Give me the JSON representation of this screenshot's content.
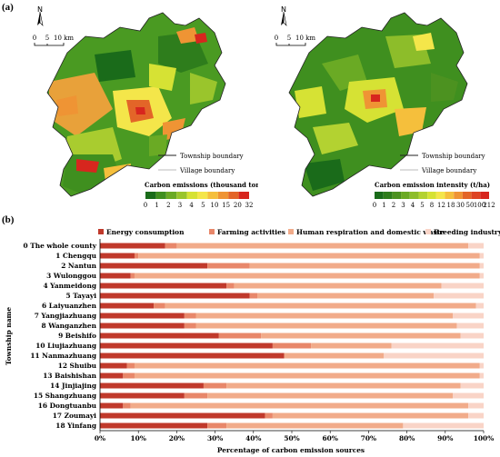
{
  "panels": {
    "a_label": "(a)",
    "b_label": "(b)"
  },
  "maps": {
    "north_label": "N",
    "scale_ticks": [
      "0",
      "5",
      "10 km"
    ],
    "legend_lines": {
      "township": "Township boundary",
      "village": "Village boundary"
    },
    "left": {
      "colorbar_title": "Carbon emissions (thousand tons)",
      "colorbar_ticks": [
        "0",
        "1",
        "2",
        "3",
        "4",
        "5",
        "10",
        "15",
        "20",
        "32"
      ],
      "colors": [
        "#1a6b1a",
        "#3f8f1f",
        "#6aaa24",
        "#9ac52c",
        "#d6e234",
        "#f4e64a",
        "#f5bf3c",
        "#ef9434",
        "#e36528",
        "#d7261e"
      ]
    },
    "right": {
      "colorbar_title": "Carbon emission intensity (t/ha)",
      "colorbar_ticks": [
        "0",
        "1",
        "2",
        "3",
        "4",
        "5",
        "8",
        "12",
        "18",
        "30",
        "50",
        "100",
        "212"
      ],
      "colors": [
        "#1a6b1a",
        "#2e7d1c",
        "#4c9220",
        "#6aaa24",
        "#8dbd2a",
        "#b3d231",
        "#d6e234",
        "#f4e64a",
        "#f5bf3c",
        "#ef9434",
        "#e36528",
        "#de4423",
        "#d7261e"
      ]
    }
  },
  "chart_data": {
    "type": "bar",
    "stacked": "percent",
    "orientation": "horizontal",
    "ylabel": "Township name",
    "xlabel": "Percentage of carbon emission sources",
    "xlim": [
      0,
      100
    ],
    "xticks": [
      "0%",
      "10%",
      "20%",
      "30%",
      "40%",
      "50%",
      "60%",
      "70%",
      "80%",
      "90%",
      "100%"
    ],
    "legend_position": "top",
    "categories": [
      "0 The whole county",
      "1 Chengqu",
      "2 Nantun",
      "3 Wulonggou",
      "4 Yanmeidong",
      "5 Tayayi",
      "6 Laiyuanzhen",
      "7 Yangjiazhuang",
      "8 Wanganzhen",
      "9 Beishifo",
      "10 Liujiazhuang",
      "11 Nanmazhuang",
      "12 Shuibu",
      "13 Baishishan",
      "14 Jinjiajing",
      "15 Shangzhuang",
      "16 Dongtuanbu",
      "17 Zoumayi",
      "18 Yinfang"
    ],
    "series": [
      {
        "name": "Energy consumption",
        "color": "#c0392b",
        "values": [
          17,
          9,
          28,
          8,
          33,
          39,
          14,
          22,
          22,
          31,
          45,
          48,
          7,
          6,
          27,
          22,
          6,
          43,
          28
        ]
      },
      {
        "name": "Farming activities",
        "color": "#e8876a",
        "values": [
          3,
          1,
          11,
          1,
          2,
          2,
          3,
          3,
          3,
          11,
          10,
          0,
          2,
          3,
          6,
          6,
          2,
          2,
          5
        ]
      },
      {
        "name": "Human respiration and domestic waste",
        "color": "#f1ab8a",
        "values": [
          76,
          89,
          60,
          90,
          54,
          46,
          81,
          67,
          68,
          52,
          21,
          26,
          90,
          90,
          61,
          64,
          88,
          51,
          46
        ]
      },
      {
        "name": "Breeding industry",
        "color": "#f9d4c7",
        "values": [
          4,
          1,
          1,
          1,
          11,
          13,
          2,
          8,
          7,
          6,
          24,
          26,
          1,
          1,
          6,
          8,
          4,
          4,
          21
        ]
      }
    ]
  }
}
